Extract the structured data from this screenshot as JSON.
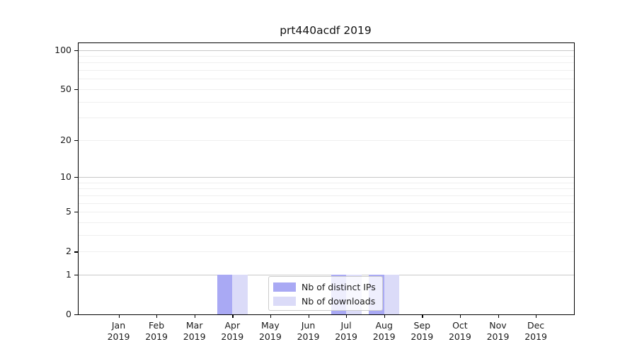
{
  "figure": {
    "title": "prt440acdf 2019"
  },
  "chart_data": {
    "type": "bar",
    "title": "prt440acdf 2019",
    "x_categories": [
      "Jan 2019",
      "Feb 2019",
      "Mar 2019",
      "Apr 2019",
      "May 2019",
      "Jun 2019",
      "Jul 2019",
      "Aug 2019",
      "Sep 2019",
      "Oct 2019",
      "Nov 2019",
      "Dec 2019"
    ],
    "series": [
      {
        "name": "Nb of distinct IPs",
        "color": "#a9a9f4",
        "values": [
          0,
          0,
          0,
          1,
          0,
          0,
          1,
          1,
          0,
          0,
          0,
          0
        ]
      },
      {
        "name": "Nb of downloads",
        "color": "#dbdbf8",
        "values": [
          0,
          0,
          0,
          1,
          0,
          0,
          1,
          1,
          0,
          0,
          0,
          0
        ]
      }
    ],
    "yscale": "log1p",
    "y_axis": {
      "labeled_ticks": [
        0,
        1,
        2,
        5,
        10,
        20,
        50,
        100
      ],
      "major_grid_values": [
        1,
        10,
        100
      ],
      "minor_grid_values": [
        2,
        3,
        4,
        5,
        6,
        7,
        8,
        9,
        20,
        30,
        40,
        50,
        60,
        70,
        80,
        90
      ],
      "range": [
        0,
        112
      ]
    },
    "legend": {
      "position": "lower center inside",
      "items": [
        "Nb of distinct IPs",
        "Nb of downloads"
      ]
    },
    "grid": true
  },
  "colors": {
    "spine": "#000000",
    "text": "#1a1a1a",
    "grid_major": "#c8c8c8",
    "grid_minor": "#efefef",
    "legend_border": "#cccccc",
    "bar_distinct_ips": "#a9a9f4",
    "bar_downloads": "#dbdbf8"
  }
}
